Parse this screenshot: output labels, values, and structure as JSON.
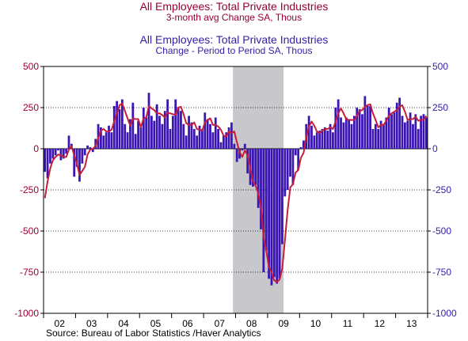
{
  "titles": {
    "line_title": "All Employees: Total Private Industries",
    "line_subtitle": "3-month avg Change     SA, Thous",
    "bar_title": "All Employees: Total Private Industries",
    "bar_subtitle": "Change - Period to Period     SA, Thous"
  },
  "source": "Source:  Bureau of Labor Statistics /Haver Analytics",
  "chart_data": {
    "type": "bar",
    "x_start": "2002-01",
    "x_end": "2013-12",
    "frequency": "monthly",
    "xtick_labels": [
      "02",
      "03",
      "04",
      "05",
      "06",
      "07",
      "08",
      "09",
      "10",
      "11",
      "12",
      "13"
    ],
    "ylim": [
      -1000,
      500
    ],
    "left_yticks": [
      500,
      250,
      0,
      -250,
      -500,
      -750,
      -1000
    ],
    "right_yticks": [
      500,
      250,
      0,
      -250,
      -500,
      -750,
      -1000
    ],
    "grid": "horizontal-dotted",
    "recession_shading": {
      "start": "2007-12",
      "end": "2009-06",
      "color": "#c8c8cc"
    },
    "colors": {
      "bars": "#3b14b4",
      "line": "#c41e3a",
      "left_axis": "#990033",
      "right_axis": "#3322aa",
      "shade": "#c8c8cc"
    },
    "series": [
      {
        "name": "Change - Period to Period",
        "render": "bar",
        "axis": "right",
        "values": [
          -140,
          -180,
          -90,
          -60,
          -40,
          -10,
          -70,
          -60,
          -30,
          80,
          30,
          -170,
          -110,
          -200,
          -90,
          -40,
          20,
          10,
          -20,
          60,
          150,
          130,
          80,
          100,
          140,
          100,
          260,
          290,
          240,
          300,
          150,
          100,
          180,
          280,
          90,
          170,
          130,
          250,
          190,
          340,
          200,
          170,
          270,
          200,
          150,
          230,
          300,
          120,
          200,
          300,
          250,
          230,
          150,
          80,
          200,
          160,
          120,
          80,
          140,
          120,
          220,
          180,
          150,
          100,
          190,
          120,
          40,
          80,
          100,
          130,
          160,
          30,
          -80,
          -60,
          -10,
          30,
          -150,
          -220,
          -230,
          -220,
          -360,
          -490,
          -750,
          -620,
          -790,
          -830,
          -780,
          -820,
          -790,
          -580,
          -290,
          -250,
          -170,
          -220,
          -40,
          -130,
          10,
          50,
          150,
          200,
          140,
          80,
          100,
          110,
          120,
          130,
          110,
          150,
          100,
          250,
          300,
          190,
          160,
          190,
          180,
          150,
          200,
          250,
          240,
          210,
          320,
          260,
          260,
          120,
          150,
          120,
          170,
          150,
          190,
          250,
          210,
          220,
          280,
          310,
          200,
          160,
          170,
          220,
          150,
          210,
          120,
          200,
          210,
          190
        ]
      },
      {
        "name": "3-month avg Change",
        "render": "line",
        "axis": "left",
        "values": [
          -300,
          -200,
          -120,
          -70,
          -50,
          -35,
          -40,
          -50,
          -50,
          -5,
          15,
          -40,
          -90,
          -160,
          -135,
          -110,
          -35,
          -5,
          0,
          15,
          65,
          110,
          120,
          105,
          105,
          115,
          165,
          215,
          265,
          275,
          230,
          185,
          140,
          185,
          180,
          180,
          130,
          185,
          190,
          260,
          245,
          235,
          215,
          215,
          205,
          190,
          220,
          215,
          210,
          205,
          250,
          255,
          210,
          155,
          145,
          145,
          160,
          120,
          115,
          110,
          160,
          175,
          185,
          145,
          145,
          135,
          115,
          80,
          75,
          105,
          95,
          105,
          40,
          -20,
          -50,
          -10,
          -40,
          -115,
          -200,
          -225,
          -270,
          -355,
          -530,
          -620,
          -720,
          -750,
          -800,
          -810,
          -795,
          -730,
          -555,
          -375,
          -235,
          -215,
          -145,
          -130,
          -55,
          -25,
          70,
          135,
          165,
          140,
          105,
          95,
          110,
          120,
          120,
          130,
          120,
          165,
          215,
          245,
          215,
          180,
          175,
          175,
          175,
          200,
          230,
          235,
          255,
          265,
          270,
          215,
          175,
          130,
          145,
          145,
          170,
          200,
          215,
          225,
          235,
          255,
          265,
          225,
          175,
          180,
          180,
          195,
          170,
          175,
          175,
          200
        ]
      }
    ]
  }
}
